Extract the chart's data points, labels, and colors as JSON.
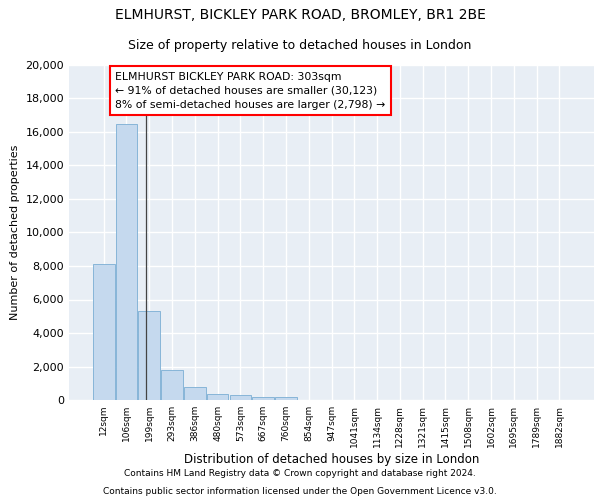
{
  "title1": "ELMHURST, BICKLEY PARK ROAD, BROMLEY, BR1 2BE",
  "title2": "Size of property relative to detached houses in London",
  "xlabel": "Distribution of detached houses by size in London",
  "ylabel": "Number of detached properties",
  "bar_color": "#c5d9ee",
  "bar_edge_color": "#7aaed4",
  "categories": [
    "12sqm",
    "106sqm",
    "199sqm",
    "293sqm",
    "386sqm",
    "480sqm",
    "573sqm",
    "667sqm",
    "760sqm",
    "854sqm",
    "947sqm",
    "1041sqm",
    "1134sqm",
    "1228sqm",
    "1321sqm",
    "1415sqm",
    "1508sqm",
    "1602sqm",
    "1695sqm",
    "1789sqm",
    "1882sqm"
  ],
  "values": [
    8100,
    16500,
    5300,
    1800,
    750,
    340,
    280,
    200,
    150,
    0,
    0,
    0,
    0,
    0,
    0,
    0,
    0,
    0,
    0,
    0,
    0
  ],
  "annotation_line1": "ELMHURST BICKLEY PARK ROAD: 303sqm",
  "annotation_line2": "← 91% of detached houses are smaller (30,123)",
  "annotation_line3": "8% of semi-detached houses are larger (2,798) →",
  "vline_x": 1.85,
  "ylim": [
    0,
    20000
  ],
  "yticks": [
    0,
    2000,
    4000,
    6000,
    8000,
    10000,
    12000,
    14000,
    16000,
    18000,
    20000
  ],
  "footnote1": "Contains HM Land Registry data © Crown copyright and database right 2024.",
  "footnote2": "Contains public sector information licensed under the Open Government Licence v3.0.",
  "background_color": "#e8eef5",
  "grid_color": "#ffffff",
  "title_fontsize": 10,
  "subtitle_fontsize": 9
}
